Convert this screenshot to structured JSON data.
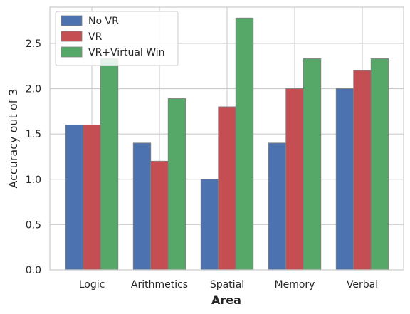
{
  "chart_data": {
    "type": "bar",
    "title": "",
    "xlabel": "Area",
    "ylabel": "Accuracy out of 3",
    "categories": [
      "Logic",
      "Arithmetics",
      "Spatial",
      "Memory",
      "Verbal"
    ],
    "series": [
      {
        "name": "No VR",
        "color": "#4c72b0",
        "values": [
          1.6,
          1.4,
          1.0,
          1.4,
          2.0
        ]
      },
      {
        "name": "VR",
        "color": "#c44e52",
        "values": [
          1.6,
          1.2,
          1.8,
          2.0,
          2.2
        ]
      },
      {
        "name": "VR+Virtual Win",
        "color": "#55a868",
        "values": [
          2.33,
          1.89,
          2.78,
          2.33,
          2.33
        ]
      }
    ],
    "yticks": [
      "0.0",
      "0.5",
      "1.0",
      "1.5",
      "2.0",
      "2.5"
    ],
    "ylim": [
      0,
      2.9
    ],
    "grid": true,
    "legend_position": "top-left"
  }
}
